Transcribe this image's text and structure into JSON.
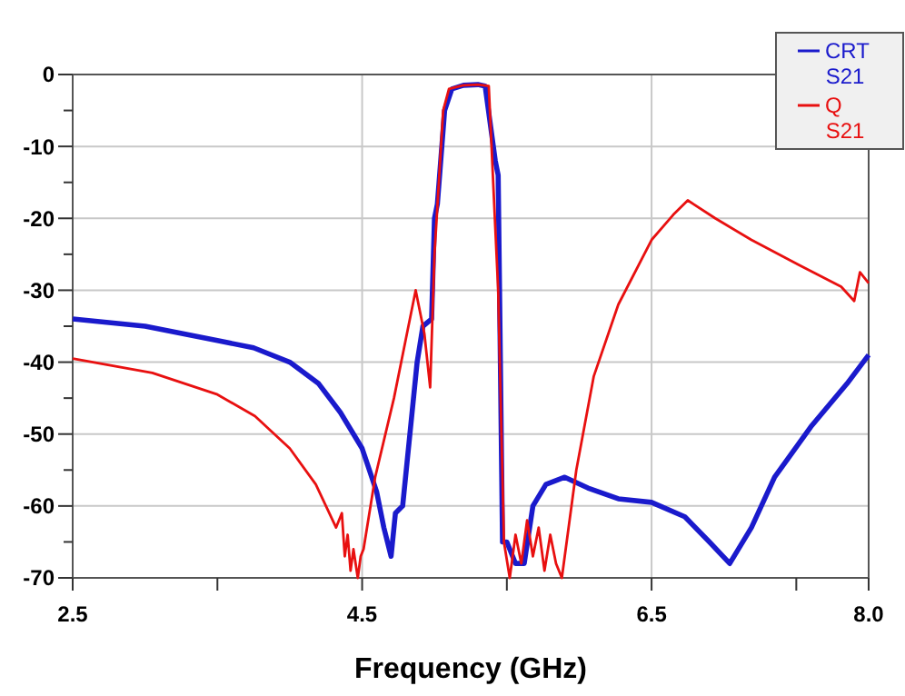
{
  "chart_data": {
    "type": "line",
    "xlabel": "Frequency (GHz)",
    "xlim": [
      2.5,
      8.0
    ],
    "xticks": [
      2.5,
      {
        "value": 3.5,
        "label": null
      },
      4.5,
      {
        "value": 5.5,
        "label": null
      },
      6.5,
      {
        "value": 7.5,
        "label": null
      },
      {
        "value": 8.0,
        "label": "8.0"
      }
    ],
    "ylim": [
      -70,
      0
    ],
    "yticks": [
      0,
      {
        "value": -5,
        "label": null
      },
      -10,
      {
        "value": -15,
        "label": null
      },
      -20,
      {
        "value": -25,
        "label": null
      },
      -30,
      {
        "value": -35,
        "label": null
      },
      -40,
      {
        "value": -45,
        "label": null
      },
      -50,
      {
        "value": -55,
        "label": null
      },
      -60,
      {
        "value": -65,
        "label": null
      },
      -70
    ],
    "grid": true,
    "legend": "top right",
    "line_style": "solid",
    "marker": "none",
    "series": [
      {
        "name": "CRT S21",
        "color": "#1a1acc",
        "x": [
          2.5,
          3.0,
          3.5,
          3.75,
          4.0,
          4.2,
          4.35,
          4.5,
          4.6,
          4.65,
          4.7,
          4.73,
          4.78,
          4.83,
          4.88,
          4.92,
          4.98,
          5.0,
          5.02,
          5.07,
          5.12,
          5.2,
          5.3,
          5.35,
          5.42,
          5.44,
          5.47,
          5.5,
          5.56,
          5.62,
          5.68,
          5.77,
          5.9,
          6.06,
          6.27,
          6.5,
          6.73,
          6.9,
          7.04,
          7.19,
          7.35,
          7.6,
          7.85,
          8.0
        ],
        "values": [
          -34,
          -35,
          -37,
          -38,
          -40,
          -43,
          -47,
          -52,
          -58,
          -63,
          -67,
          -61,
          -60,
          -50,
          -40,
          -35,
          -34,
          -20,
          -18,
          -5,
          -2,
          -1.5,
          -1.4,
          -1.6,
          -12,
          -14,
          -65,
          -65,
          -68,
          -68,
          -60,
          -57,
          -56,
          -57.5,
          -59,
          -59.5,
          -61.5,
          -65,
          -68,
          -63,
          -56,
          -49,
          -43,
          -39
        ]
      },
      {
        "name": "Q S21",
        "color": "#e81010",
        "x": [
          2.5,
          3.05,
          3.5,
          3.76,
          4.0,
          4.18,
          4.32,
          4.36,
          4.38,
          4.4,
          4.42,
          4.44,
          4.47,
          4.49,
          4.51,
          4.59,
          4.72,
          4.8,
          4.87,
          4.93,
          4.97,
          5.0,
          5.06,
          5.1,
          5.2,
          5.3,
          5.375,
          5.44,
          5.48,
          5.52,
          5.56,
          5.6,
          5.64,
          5.68,
          5.72,
          5.76,
          5.8,
          5.84,
          5.88,
          5.98,
          6.1,
          6.27,
          6.5,
          6.65,
          6.75,
          6.94,
          7.19,
          7.52,
          7.81,
          7.9,
          7.94,
          8.0
        ],
        "values": [
          -39.5,
          -41.5,
          -44.5,
          -47.5,
          -52,
          -57,
          -63,
          -61,
          -67,
          -64,
          -69,
          -66,
          -70,
          -67,
          -66,
          -56,
          -45,
          -37,
          -30,
          -36,
          -43.5,
          -25,
          -5,
          -2,
          -1.5,
          -1.4,
          -1.6,
          -30,
          -65,
          -70,
          -64,
          -68,
          -62,
          -67,
          -63,
          -69,
          -64,
          -68,
          -70,
          -55,
          -42,
          -32,
          -23,
          -19.5,
          -17.5,
          -20,
          -23,
          -26.5,
          -29.5,
          -31.5,
          -27.5,
          -29
        ]
      }
    ]
  }
}
